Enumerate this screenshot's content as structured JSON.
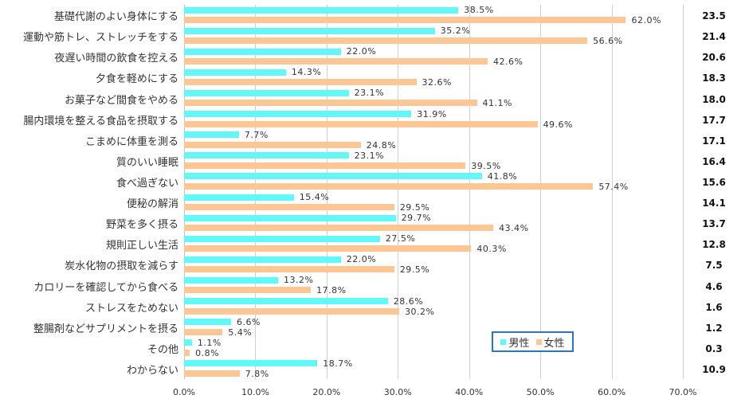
{
  "chart_data": {
    "type": "bar",
    "orientation": "horizontal",
    "title": "",
    "xlabel": "",
    "ylabel": "",
    "xlim": [
      0,
      70
    ],
    "x_ticks": [
      "0.0%",
      "10.0%",
      "20.0%",
      "30.0%",
      "40.0%",
      "50.0%",
      "60.0%",
      "70.0%"
    ],
    "grid": true,
    "legend_position": "inside-bottom-right",
    "categories": [
      "基礎代謝のよい身体にする",
      "運動や筋トレ、ストレッチをする",
      "夜遅い時間の飲食を控える",
      "夕食を軽めにする",
      "お菓子など間食をやめる",
      "腸内環境を整える食品を摂取する",
      "こまめに体重を測る",
      "質のいい睡眠",
      "食べ過ぎない",
      "便秘の解消",
      "野菜を多く摂る",
      "規則正しい生活",
      "炭水化物の摂取を減らす",
      "カロリーを確認してから食べる",
      "ストレスをためない",
      "整腸剤などサプリメントを摂る",
      "その他",
      "わからない"
    ],
    "series": [
      {
        "name": "男性",
        "color": "#63f7f7",
        "values": [
          38.5,
          35.2,
          22.0,
          14.3,
          23.1,
          31.9,
          7.7,
          23.1,
          41.8,
          15.4,
          29.7,
          27.5,
          22.0,
          13.2,
          28.6,
          6.6,
          1.1,
          18.7
        ]
      },
      {
        "name": "女性",
        "color": "#fcc795",
        "values": [
          62.0,
          56.6,
          42.6,
          32.6,
          41.1,
          49.6,
          24.8,
          39.5,
          57.4,
          29.5,
          43.4,
          40.3,
          29.5,
          17.8,
          30.2,
          5.4,
          0.8,
          7.8
        ]
      }
    ],
    "side_column": {
      "values": [
        "23.5",
        "21.4",
        "20.6",
        "18.3",
        "18.0",
        "17.7",
        "17.1",
        "16.4",
        "15.6",
        "14.1",
        "13.7",
        "12.8",
        "7.5",
        "4.6",
        "1.6",
        "1.2",
        "0.3",
        "10.9"
      ]
    }
  },
  "legend": {
    "male_label": "男性",
    "female_label": "女性",
    "border_color": "#2e75b6"
  }
}
